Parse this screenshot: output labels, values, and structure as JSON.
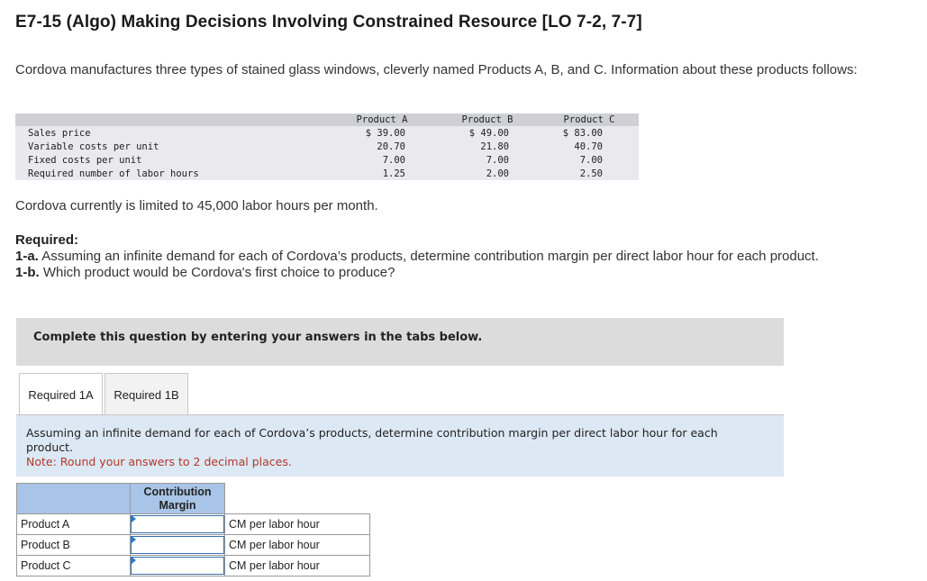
{
  "title": "E7-15 (Algo) Making Decisions Involving Constrained Resource [LO 7-2, 7-7]",
  "intro": "Cordova manufactures three types of stained glass windows, cleverly named Products A, B, and C. Information about these products follows:",
  "info_table": {
    "headers": [
      "",
      "Product A",
      "Product B",
      "Product C"
    ],
    "rows": [
      {
        "label": "Sales price",
        "a": "$ 39.00",
        "b": "$ 49.00",
        "c": "$ 83.00"
      },
      {
        "label": "Variable costs per unit",
        "a": "20.70",
        "b": "21.80",
        "c": "40.70"
      },
      {
        "label": "Fixed costs per unit",
        "a": "7.00",
        "b": "7.00",
        "c": "7.00"
      },
      {
        "label": "Required number of labor hours",
        "a": "1.25",
        "b": "2.00",
        "c": "2.50"
      }
    ]
  },
  "limit_text": "Cordova currently is limited to 45,000 labor hours per month.",
  "required": {
    "heading": "Required:",
    "r1a_label": "1-a.",
    "r1a_text": "Assuming an infinite demand for each of Cordova’s products, determine contribution margin per direct labor hour for each product.",
    "r1b_label": "1-b.",
    "r1b_text": "Which product would be Cordova's first choice to produce?"
  },
  "complete_box": "Complete this question by entering your answers in the tabs below.",
  "tabs": [
    {
      "label": "Required 1A",
      "active": true
    },
    {
      "label": "Required 1B",
      "active": false
    }
  ],
  "panel": {
    "question": "Assuming an infinite demand for each of Cordova’s products, determine contribution margin per direct labor hour for each product.",
    "note": "Note: Round your answers to 2 decimal places."
  },
  "answer_table": {
    "header": "Contribution Margin",
    "rows": [
      {
        "product": "Product A",
        "value": "",
        "unit": "CM per labor hour"
      },
      {
        "product": "Product B",
        "value": "",
        "unit": "CM per labor hour"
      },
      {
        "product": "Product C",
        "value": "",
        "unit": "CM per labor hour"
      }
    ]
  },
  "colors": {
    "note_red": "#b5372a",
    "panel_blue": "#dce8f4",
    "table_header_blue": "#a8c4e6"
  }
}
